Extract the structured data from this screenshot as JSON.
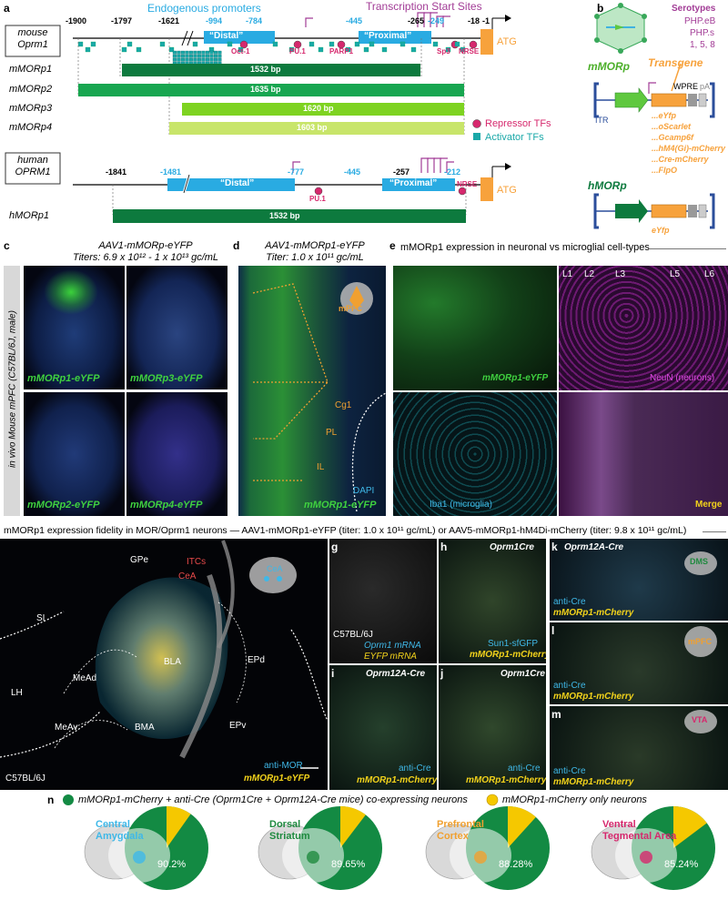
{
  "panel_a": {
    "letter": "a",
    "mouse_gene": "mouse\nOprm1",
    "human_gene": "human\nOPRM1",
    "endogenous_promoters": "Endogenous promoters",
    "tss": "Transcription Start Sites",
    "mouse_coords": [
      "-1900",
      "-1797",
      "-1621",
      "-994",
      "-784",
      "-445",
      "-265",
      "-249",
      "-18",
      "-1"
    ],
    "human_coords": [
      "-1841",
      "-1481",
      "-777",
      "-445",
      "-257",
      "-212"
    ],
    "distal": "“Distal”",
    "proximal": "“Proximal”",
    "tf_labels": {
      "oct1": "Oct-1",
      "pu1": "PU.1",
      "parp1": "PARP1",
      "sp3": "Sp3",
      "nrse": "NRSE"
    },
    "atg": "ATG",
    "constructs": [
      {
        "name": "mMORp1",
        "length": "1532 bp"
      },
      {
        "name": "mMORp2",
        "length": "1635 bp"
      },
      {
        "name": "mMORp3",
        "length": "1620 bp"
      },
      {
        "name": "mMORp4",
        "length": "1603 bp"
      }
    ],
    "human_construct": {
      "name": "hMORp1",
      "length": "1532 bp"
    },
    "legend": {
      "repressor": "Repressor TFs",
      "activator": "Activator TFs"
    },
    "colors": {
      "dark_green": "#0d7a3e",
      "green": "#18a650",
      "light_green": "#7ed321",
      "pale_green": "#c8e56a",
      "blue": "#29abe2",
      "repressor": "#d6286d",
      "activator": "#1aa8a8",
      "orange": "#f7a23c",
      "purple": "#a23c96"
    }
  },
  "panel_b": {
    "letter": "b",
    "serotypes_title": "Serotypes",
    "serotypes": [
      "PHP.eB",
      "PHP.s",
      "1, 5, 8"
    ],
    "mmorp": "mMORp",
    "hmorp": "hMORp",
    "transgene": "Transgene",
    "wpre": "WPRE",
    "pa": "pA",
    "itr": "ITR",
    "transgenes": [
      "eYfp",
      "oScarlet",
      "Gcamp6f",
      "hM4(Gi)-mCherry",
      "Cre-mCherry",
      "FlpO"
    ],
    "h_transgenes": [
      "eYfp"
    ]
  },
  "panel_c": {
    "letter": "c",
    "title": "AAV1-mMORp-eYFP",
    "titers": "Titers: 6.9 x 10¹² - 1 x 10¹³ gc/mL",
    "side_label": "in vivo Mouse mPFC (C57BL/6J, male)",
    "labels": [
      "mMORp1-eYFP",
      "mMORp3-eYFP",
      "mMORp2-eYFP",
      "mMORp4-eYFP"
    ]
  },
  "panel_d": {
    "letter": "d",
    "title": "AAV1-mMORp1-eYFP",
    "titer": "Titer: 1.0 x 10¹¹ gc/mL",
    "regions": [
      "mPFC",
      "Cg1",
      "PL",
      "IL"
    ],
    "dapi": "DAPI",
    "label": "mMORp1-eYFP"
  },
  "panel_e": {
    "letter": "e",
    "title": "mMORp1 expression in neuronal vs microglial cell-types",
    "layers": [
      "L1",
      "L2",
      "L3",
      "L5",
      "L6"
    ],
    "labels": [
      "mMORp1-eYFP",
      "NeuN (neurons)",
      "Iba1 (microglia)",
      "Merge"
    ]
  },
  "section_header": "mMORp1 expression fidelity in MOR/Oprm1 neurons — AAV1-mMORp1-eYFP (titer: 1.0 x 10¹¹ gc/mL) or AAV5-mMORp1-hM4Di-mCherry (titer: 9.8 x 10¹¹ gc/mL)",
  "panel_f": {
    "letter": "f",
    "regions": [
      "GPe",
      "ITCs",
      "CeA",
      "SI",
      "LH",
      "MeAd",
      "BLA",
      "EPd",
      "MeAv",
      "BMA",
      "EPv"
    ],
    "inset": "CeA",
    "strain": "C57BL/6J",
    "anti": "anti-MOR",
    "label": "mMORp1-eYFP"
  },
  "panel_g": {
    "letter": "g",
    "strain": "C57BL/6J",
    "l1": "Oprm1 mRNA",
    "l2": "EYFP mRNA"
  },
  "panel_h": {
    "letter": "h",
    "mouse": "Oprm1Cre",
    "l1": "Sun1-sfGFP",
    "l2": "mMORp1-mCherry"
  },
  "panel_i": {
    "letter": "i",
    "mouse": "Oprm12A-Cre",
    "l1": "anti-Cre",
    "l2": "mMORp1-mCherry"
  },
  "panel_j": {
    "letter": "j",
    "mouse": "Oprm1Cre",
    "l1": "anti-Cre",
    "l2": "mMORp1-mCherry"
  },
  "panel_k": {
    "letter": "k",
    "mouse": "Oprm12A-Cre",
    "inset": "DMS",
    "l1": "anti-Cre",
    "l2": "mMORp1-mCherry"
  },
  "panel_l": {
    "letter": "l",
    "inset": "mPFC",
    "l1": "anti-Cre",
    "l2": "mMORp1-mCherry"
  },
  "panel_m": {
    "letter": "m",
    "inset": "VTA",
    "l1": "anti-Cre",
    "l2": "mMORp1-mCherry"
  },
  "panel_n": {
    "letter": "n",
    "legend_coexp": "mMORp1-mCherry + anti-Cre (Oprm1Cre + Oprm12A-Cre mice) co-expressing neurons",
    "legend_only": "mMORp1-mCherry only neurons",
    "chart_data": [
      {
        "type": "pie",
        "region": "Central Amygdala",
        "values": [
          90.2,
          9.8
        ],
        "label": "90.2%"
      },
      {
        "type": "pie",
        "region": "Dorsal Striatum",
        "values": [
          89.65,
          10.35
        ],
        "label": "89.65%"
      },
      {
        "type": "pie",
        "region": "Prefrontal Cortex",
        "values": [
          88.28,
          11.72
        ],
        "label": "88.28%"
      },
      {
        "type": "pie",
        "region": "Ventral Tegmental Area",
        "values": [
          85.24,
          14.76
        ],
        "label": "85.24%"
      }
    ],
    "colors": {
      "coexp": "#138a43",
      "only": "#f5c800"
    }
  }
}
